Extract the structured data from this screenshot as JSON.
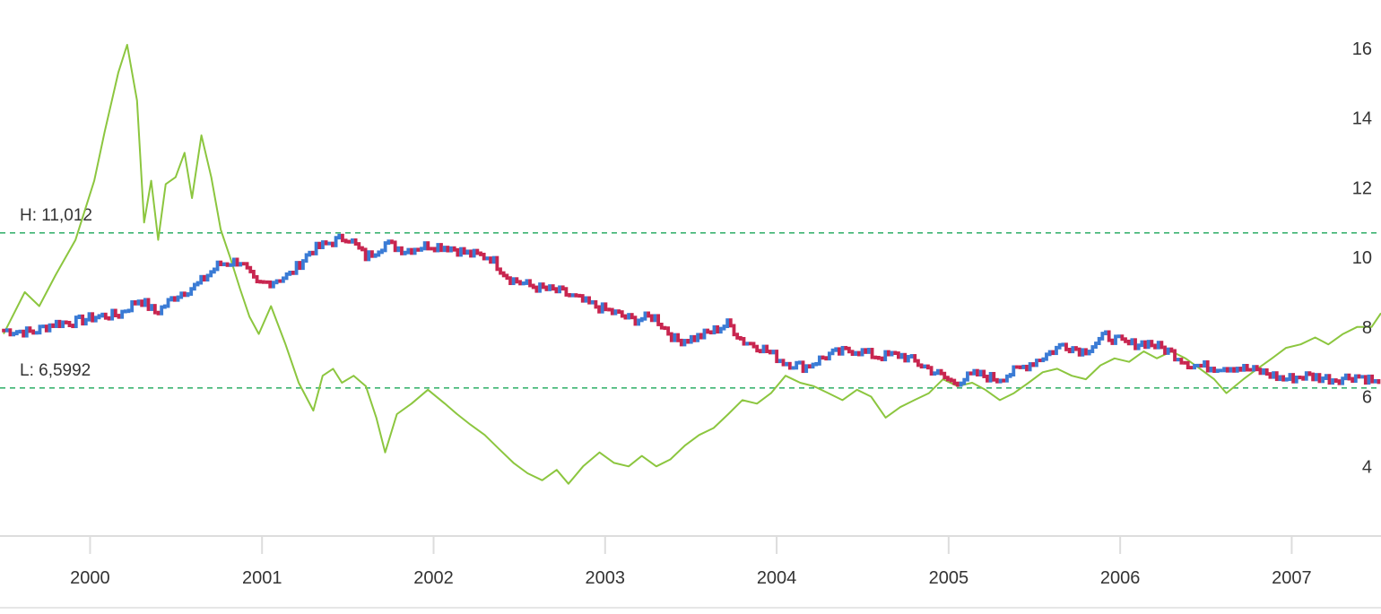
{
  "chart_data": {
    "type": "line",
    "x_axis": {
      "type": "date",
      "range": [
        "1999-07-01",
        "2007-07-10"
      ],
      "tick_labels": [
        "2000",
        "2001",
        "2002",
        "2003",
        "2004",
        "2005",
        "2006",
        "2007"
      ],
      "tick_dates": [
        "2000-01-01",
        "2001-01-01",
        "2002-01-01",
        "2003-01-01",
        "2004-01-01",
        "2005-01-01",
        "2006-01-01",
        "2007-01-01"
      ]
    },
    "y_axis": {
      "position": "right",
      "range": [
        2,
        17
      ],
      "ticks": [
        4,
        6,
        8,
        10,
        12,
        14,
        16
      ],
      "tick_labels": [
        "4",
        "6",
        "8",
        "10",
        "12",
        "14",
        "16"
      ],
      "grid": false
    },
    "reference_lines": [
      {
        "label": "H: 11,012",
        "value": 10.7,
        "color": "#3cb371",
        "style": "dashed"
      },
      {
        "label": "L: 6,5992",
        "value": 6.25,
        "color": "#3cb371",
        "style": "dashed"
      }
    ],
    "series": [
      {
        "kind": "candlestick",
        "up_color": "#3a7bd5",
        "down_color": "#c8254f",
        "points": [
          [
            "1999-07-01",
            7.9
          ],
          [
            "1999-09-01",
            7.85
          ],
          [
            "1999-10-15",
            8.1
          ],
          [
            "1999-12-01",
            8.15
          ],
          [
            "2000-01-15",
            8.3
          ],
          [
            "2000-03-01",
            8.35
          ],
          [
            "2000-04-15",
            8.8
          ],
          [
            "2000-05-20",
            8.4
          ],
          [
            "2000-07-01",
            8.9
          ],
          [
            "2000-08-15",
            9.2
          ],
          [
            "2000-10-01",
            9.8
          ],
          [
            "2000-11-15",
            9.9
          ],
          [
            "2000-12-20",
            9.2
          ],
          [
            "2001-01-20",
            9.3
          ],
          [
            "2001-03-01",
            9.5
          ],
          [
            "2001-04-15",
            10.2
          ],
          [
            "2001-06-01",
            10.45
          ],
          [
            "2001-07-01",
            10.6
          ],
          [
            "2001-08-10",
            10.0
          ],
          [
            "2001-09-20",
            10.4
          ],
          [
            "2001-11-01",
            10.2
          ],
          [
            "2001-12-20",
            10.35
          ],
          [
            "2002-02-01",
            10.3
          ],
          [
            "2002-03-15",
            10.1
          ],
          [
            "2002-05-01",
            10.0
          ],
          [
            "2002-06-10",
            9.4
          ],
          [
            "2002-07-20",
            9.2
          ],
          [
            "2002-08-20",
            9.1
          ],
          [
            "2002-10-01",
            9.0
          ],
          [
            "2002-11-20",
            8.7
          ],
          [
            "2003-01-20",
            8.4
          ],
          [
            "2003-03-01",
            8.2
          ],
          [
            "2003-04-15",
            8.3
          ],
          [
            "2003-06-01",
            7.6
          ],
          [
            "2003-07-15",
            7.7
          ],
          [
            "2003-08-20",
            7.9
          ],
          [
            "2003-09-20",
            8.1
          ],
          [
            "2003-10-20",
            7.6
          ],
          [
            "2003-12-01",
            7.4
          ],
          [
            "2004-01-15",
            7.0
          ],
          [
            "2004-03-01",
            6.85
          ],
          [
            "2004-04-20",
            7.2
          ],
          [
            "2004-06-15",
            7.35
          ],
          [
            "2004-08-01",
            7.15
          ],
          [
            "2004-09-20",
            7.2
          ],
          [
            "2004-11-20",
            6.8
          ],
          [
            "2005-01-10",
            6.4
          ],
          [
            "2005-03-01",
            6.65
          ],
          [
            "2005-04-15",
            6.5
          ],
          [
            "2005-06-01",
            6.8
          ],
          [
            "2005-07-15",
            7.1
          ],
          [
            "2005-09-01",
            7.5
          ],
          [
            "2005-10-15",
            7.3
          ],
          [
            "2005-12-01",
            7.75
          ],
          [
            "2006-01-15",
            7.5
          ],
          [
            "2006-03-01",
            7.55
          ],
          [
            "2006-04-15",
            7.3
          ],
          [
            "2006-06-01",
            6.9
          ],
          [
            "2006-07-15",
            6.85
          ],
          [
            "2006-09-01",
            6.85
          ],
          [
            "2006-11-01",
            6.7
          ],
          [
            "2006-12-15",
            6.5
          ],
          [
            "2007-02-01",
            6.6
          ],
          [
            "2007-04-01",
            6.5
          ],
          [
            "2007-05-20",
            6.6
          ],
          [
            "2007-06-15",
            6.5
          ],
          [
            "2007-07-10",
            6.3
          ]
        ]
      },
      {
        "kind": "line",
        "color": "#8cc63f",
        "points": [
          [
            "1999-07-01",
            7.8
          ],
          [
            "1999-08-15",
            9.0
          ],
          [
            "1999-09-15",
            8.6
          ],
          [
            "1999-10-20",
            9.5
          ],
          [
            "1999-12-01",
            10.5
          ],
          [
            "2000-01-10",
            12.2
          ],
          [
            "2000-02-01",
            13.6
          ],
          [
            "2000-03-01",
            15.3
          ],
          [
            "2000-03-20",
            16.1
          ],
          [
            "2000-04-10",
            14.5
          ],
          [
            "2000-04-25",
            11.0
          ],
          [
            "2000-05-10",
            12.2
          ],
          [
            "2000-05-25",
            10.5
          ],
          [
            "2000-06-10",
            12.1
          ],
          [
            "2000-07-01",
            12.3
          ],
          [
            "2000-07-20",
            13.0
          ],
          [
            "2000-08-05",
            11.7
          ],
          [
            "2000-08-25",
            13.5
          ],
          [
            "2000-09-15",
            12.3
          ],
          [
            "2000-10-05",
            10.8
          ],
          [
            "2000-10-25",
            10.0
          ],
          [
            "2000-11-15",
            9.1
          ],
          [
            "2000-12-05",
            8.3
          ],
          [
            "2000-12-25",
            7.8
          ],
          [
            "2001-01-20",
            8.6
          ],
          [
            "2001-02-20",
            7.5
          ],
          [
            "2001-03-20",
            6.4
          ],
          [
            "2001-04-20",
            5.6
          ],
          [
            "2001-05-10",
            6.6
          ],
          [
            "2001-06-01",
            6.8
          ],
          [
            "2001-06-20",
            6.4
          ],
          [
            "2001-07-15",
            6.6
          ],
          [
            "2001-08-10",
            6.3
          ],
          [
            "2001-09-01",
            5.4
          ],
          [
            "2001-09-20",
            4.4
          ],
          [
            "2001-10-15",
            5.5
          ],
          [
            "2001-11-15",
            5.8
          ],
          [
            "2001-12-20",
            6.2
          ],
          [
            "2002-01-25",
            5.8
          ],
          [
            "2002-02-20",
            5.5
          ],
          [
            "2002-03-20",
            5.2
          ],
          [
            "2002-04-20",
            4.9
          ],
          [
            "2002-05-20",
            4.5
          ],
          [
            "2002-06-20",
            4.1
          ],
          [
            "2002-07-20",
            3.8
          ],
          [
            "2002-08-20",
            3.6
          ],
          [
            "2002-09-20",
            3.9
          ],
          [
            "2002-10-15",
            3.5
          ],
          [
            "2002-11-15",
            4.0
          ],
          [
            "2002-12-20",
            4.4
          ],
          [
            "2003-01-20",
            4.1
          ],
          [
            "2003-02-20",
            4.0
          ],
          [
            "2003-03-20",
            4.3
          ],
          [
            "2003-04-20",
            4.0
          ],
          [
            "2003-05-20",
            4.2
          ],
          [
            "2003-06-20",
            4.6
          ],
          [
            "2003-07-20",
            4.9
          ],
          [
            "2003-08-20",
            5.1
          ],
          [
            "2003-09-20",
            5.5
          ],
          [
            "2003-10-20",
            5.9
          ],
          [
            "2003-11-20",
            5.8
          ],
          [
            "2003-12-20",
            6.1
          ],
          [
            "2004-01-20",
            6.6
          ],
          [
            "2004-02-20",
            6.4
          ],
          [
            "2004-03-20",
            6.3
          ],
          [
            "2004-04-20",
            6.1
          ],
          [
            "2004-05-20",
            5.9
          ],
          [
            "2004-06-20",
            6.2
          ],
          [
            "2004-07-20",
            6.0
          ],
          [
            "2004-08-20",
            5.4
          ],
          [
            "2004-09-20",
            5.7
          ],
          [
            "2004-10-20",
            5.9
          ],
          [
            "2004-11-20",
            6.1
          ],
          [
            "2004-12-20",
            6.5
          ],
          [
            "2005-01-20",
            6.3
          ],
          [
            "2005-02-20",
            6.4
          ],
          [
            "2005-03-20",
            6.2
          ],
          [
            "2005-04-20",
            5.9
          ],
          [
            "2005-05-20",
            6.1
          ],
          [
            "2005-06-20",
            6.4
          ],
          [
            "2005-07-20",
            6.7
          ],
          [
            "2005-08-20",
            6.8
          ],
          [
            "2005-09-20",
            6.6
          ],
          [
            "2005-10-20",
            6.5
          ],
          [
            "2005-11-20",
            6.9
          ],
          [
            "2005-12-20",
            7.1
          ],
          [
            "2006-01-20",
            7.0
          ],
          [
            "2006-02-20",
            7.3
          ],
          [
            "2006-03-20",
            7.1
          ],
          [
            "2006-04-20",
            7.3
          ],
          [
            "2006-05-20",
            7.1
          ],
          [
            "2006-06-20",
            6.8
          ],
          [
            "2006-07-20",
            6.5
          ],
          [
            "2006-08-15",
            6.1
          ],
          [
            "2006-09-20",
            6.5
          ],
          [
            "2006-10-20",
            6.8
          ],
          [
            "2006-11-20",
            7.1
          ],
          [
            "2006-12-20",
            7.4
          ],
          [
            "2007-01-20",
            7.5
          ],
          [
            "2007-02-20",
            7.7
          ],
          [
            "2007-03-20",
            7.5
          ],
          [
            "2007-04-20",
            7.8
          ],
          [
            "2007-05-20",
            8.0
          ],
          [
            "2007-06-20",
            8.0
          ],
          [
            "2007-07-10",
            8.4
          ]
        ]
      }
    ]
  }
}
